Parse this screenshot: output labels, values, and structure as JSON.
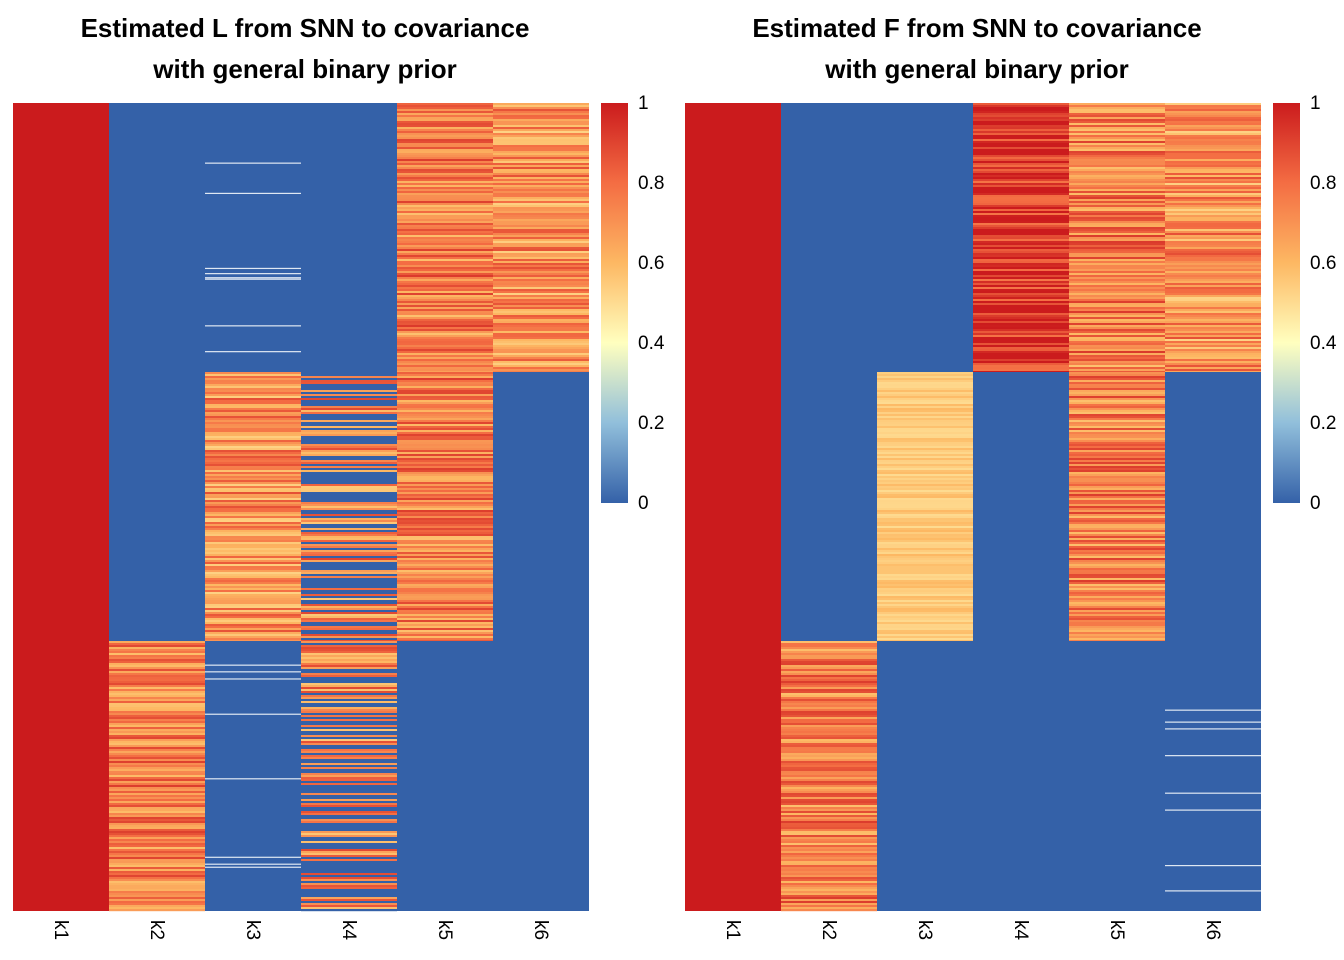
{
  "colors": {
    "low": "#3461a8",
    "mid": "#ffffbf",
    "high": "#cb1b1d",
    "scale": [
      "#3461a8",
      "#91bfdb",
      "#ffffbf",
      "#fdb863",
      "#f46d43",
      "#cb1b1d"
    ]
  },
  "chart_data": [
    {
      "type": "heatmap",
      "title_line1": "Estimated L from SNN to covariance",
      "title_line2": "with general binary prior",
      "columns": [
        "k1",
        "k2",
        "k3",
        "k4",
        "k5",
        "k6"
      ],
      "row_groups": [
        "group1",
        "group2",
        "group3"
      ],
      "legend": {
        "position": "right",
        "ticks": [
          "1",
          "0.8",
          "0.6",
          "0.4",
          "0.2",
          "0"
        ],
        "range": [
          0,
          1
        ]
      },
      "values_by_group": [
        [
          1,
          0,
          0.01,
          0,
          0.75,
          0.7
        ],
        [
          1,
          0,
          0.7,
          0.45,
          0.75,
          0
        ],
        [
          1,
          0.75,
          0.01,
          0.5,
          0,
          0
        ]
      ]
    },
    {
      "type": "heatmap",
      "title_line1": "Estimated F from SNN to covariance",
      "title_line2": "with general binary prior",
      "columns": [
        "k1",
        "k2",
        "k3",
        "k4",
        "k5",
        "k6"
      ],
      "row_groups": [
        "group1",
        "group2",
        "group3"
      ],
      "legend": {
        "position": "right",
        "ticks": [
          "1",
          "0.8",
          "0.6",
          "0.4",
          "0.2",
          "0"
        ],
        "range": [
          0,
          1
        ]
      },
      "values_by_group": [
        [
          1,
          0,
          0,
          0.95,
          0.75,
          0.7
        ],
        [
          1,
          0,
          0.55,
          0,
          0.75,
          0
        ],
        [
          1,
          0.75,
          0,
          0,
          0,
          0.02
        ]
      ]
    }
  ]
}
